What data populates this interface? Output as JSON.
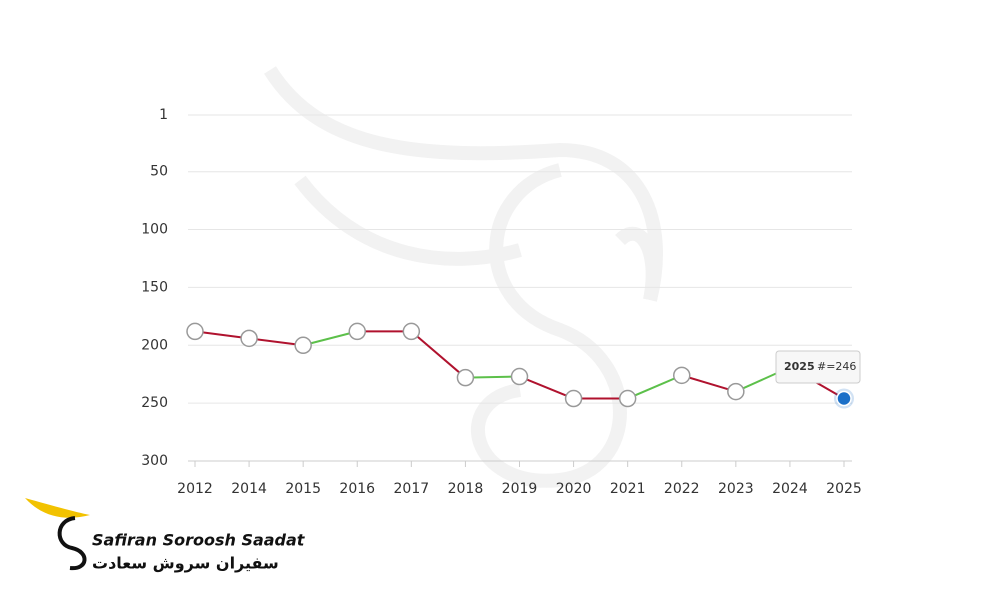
{
  "chart_data": {
    "type": "line",
    "categories": [
      "2012",
      "2014",
      "2015",
      "2016",
      "2017",
      "2018",
      "2019",
      "2020",
      "2021",
      "2022",
      "2023",
      "2024",
      "2025"
    ],
    "values": [
      188,
      194,
      200,
      188,
      188,
      228,
      227,
      246,
      246,
      226,
      240,
      219,
      246
    ],
    "ylim": [
      1,
      300
    ],
    "yticks": [
      1,
      50,
      100,
      150,
      200,
      250,
      300
    ],
    "y_inverted": true,
    "grid": true,
    "up_color": "#5cc04a",
    "down_color": "#b0122e",
    "highlight_color": "#1a6fc8",
    "tooltip": {
      "title": "2025",
      "text": "#=246"
    }
  },
  "logo": {
    "name": "Safiran Soroosh Saadat",
    "name_fa": "سفیران سروش سعادت"
  }
}
